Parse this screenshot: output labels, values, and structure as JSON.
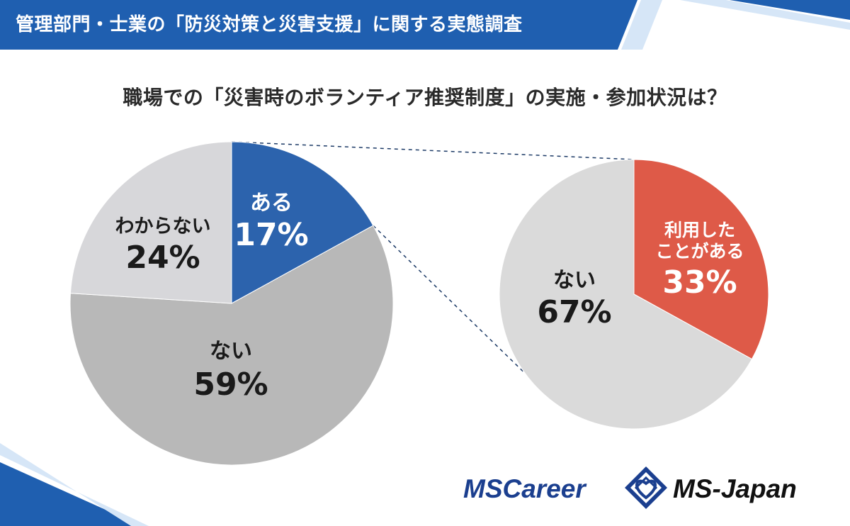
{
  "header": {
    "title": "管理部門・士業の「防災対策と災害支援」に関する実態調査",
    "accent_color": "#1f5fb0"
  },
  "question": "職場での「災害時のボランティア推奨制度」の実施・参加状況は？",
  "chart_data": [
    {
      "type": "pie",
      "title": "",
      "slices": [
        {
          "label": "ある",
          "value": 17,
          "display": "17%",
          "color": "#2c63ad",
          "text_color": "#ffffff"
        },
        {
          "label": "ない",
          "value": 59,
          "display": "59%",
          "color": "#b8b8b8",
          "text_color": "#1a1a1a"
        },
        {
          "label": "わからない",
          "value": 24,
          "display": "24%",
          "color": "#d7d7da",
          "text_color": "#1a1a1a"
        }
      ]
    },
    {
      "type": "pie",
      "title": "",
      "detail_of": "ある",
      "slices": [
        {
          "label": "利用した\nことがある",
          "value": 33,
          "display": "33%",
          "color": "#de5a48",
          "text_color": "#ffffff"
        },
        {
          "label": "ない",
          "value": 67,
          "display": "67%",
          "color": "#dadada",
          "text_color": "#1a1a1a"
        }
      ]
    }
  ],
  "logos": {
    "left": "MSCareer",
    "right": "MS-Japan",
    "color": "#1b3f8f"
  }
}
